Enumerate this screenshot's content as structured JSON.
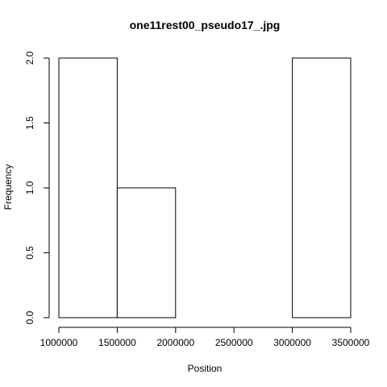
{
  "chart_data": {
    "type": "bar",
    "title": "one11rest00_pseudo17_.jpg",
    "xlabel": "Position",
    "ylabel": "Frequency",
    "bins": [
      {
        "start": 1000000,
        "end": 1500000,
        "count": 2
      },
      {
        "start": 1500000,
        "end": 2000000,
        "count": 1
      },
      {
        "start": 2000000,
        "end": 2500000,
        "count": 0
      },
      {
        "start": 2500000,
        "end": 3000000,
        "count": 0
      },
      {
        "start": 3000000,
        "end": 3500000,
        "count": 2
      }
    ],
    "xlim": [
      1000000,
      3500000
    ],
    "ylim": [
      0,
      2
    ],
    "x_ticks": [
      1000000,
      1500000,
      2000000,
      2500000,
      3000000,
      3500000
    ],
    "x_tick_labels": [
      "1000000",
      "1500000",
      "2000000",
      "2500000",
      "3000000",
      "3500000"
    ],
    "y_ticks": [
      0,
      0.5,
      1,
      1.5,
      2
    ],
    "y_tick_labels": [
      "0.0",
      "0.5",
      "1.0",
      "1.5",
      "2.0"
    ],
    "grid": false,
    "colors": {
      "bar_fill": "#ffffff",
      "bar_stroke": "#000000"
    }
  }
}
